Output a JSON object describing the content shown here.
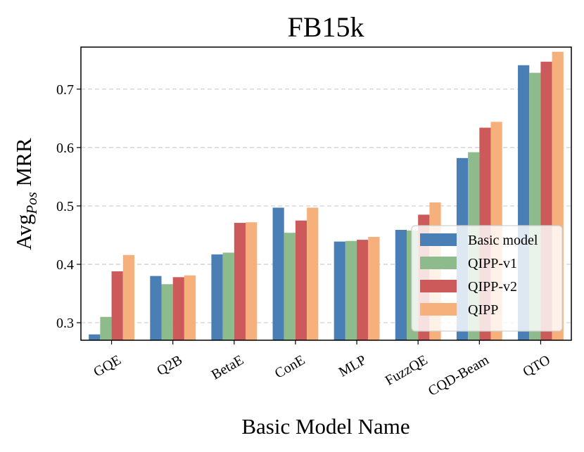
{
  "colors": {
    "Basic model": "#4a7fb5",
    "QIPP-v1": "#8dbb8c",
    "QIPP-v2": "#cd5a5a",
    "QIPP": "#f6b07b"
  },
  "chart_data": {
    "type": "bar",
    "title": "FB15k",
    "xlabel": "Basic Model Name",
    "ylabel_main": "Avg",
    "ylabel_sub": "Pos",
    "ylabel_tail": " MRR",
    "ylim": [
      0.27,
      0.772
    ],
    "yticks": [
      0.3,
      0.4,
      0.5,
      0.6,
      0.7
    ],
    "ytick_labels": [
      "0.3",
      "0.4",
      "0.5",
      "0.6",
      "0.7"
    ],
    "grid": "y-dashed",
    "legend_position": "lower-right",
    "categories": [
      "GQE",
      "Q2B",
      "BetaE",
      "ConE",
      "MLP",
      "FuzzQE",
      "CQD-Beam",
      "QTO"
    ],
    "series": [
      {
        "name": "Basic model",
        "values": [
          0.28,
          0.38,
          0.417,
          0.497,
          0.439,
          0.459,
          0.582,
          0.741
        ]
      },
      {
        "name": "QIPP-v1",
        "values": [
          0.31,
          0.366,
          0.42,
          0.454,
          0.44,
          0.458,
          0.592,
          0.728
        ]
      },
      {
        "name": "QIPP-v2",
        "values": [
          0.388,
          0.378,
          0.471,
          0.475,
          0.442,
          0.485,
          0.634,
          0.747
        ]
      },
      {
        "name": "QIPP",
        "values": [
          0.416,
          0.381,
          0.472,
          0.497,
          0.447,
          0.506,
          0.644,
          0.764
        ]
      }
    ]
  }
}
